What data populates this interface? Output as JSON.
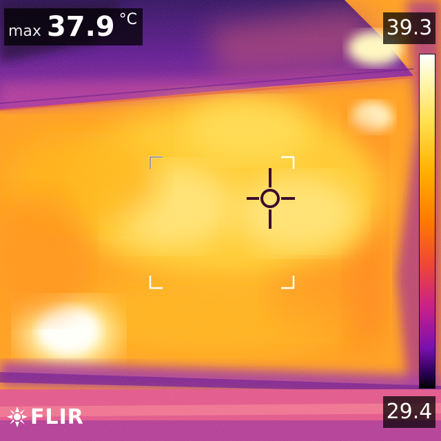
{
  "readout": {
    "max_label": "max",
    "max_value": "37.9",
    "unit": "°C"
  },
  "scale": {
    "max": "39.3",
    "min": "29.4"
  },
  "brand": {
    "logo_text": "FLIR"
  },
  "icons": {
    "crosshair": "crosshair-icon",
    "measurement_box": "measurement-box-icon",
    "logo": "flir-logo-icon"
  },
  "palette": {
    "hot": "#ffffff",
    "warm": "#ffd23c",
    "mid": "#ff8c00",
    "cool": "#c8208a",
    "cold": "#1a0040"
  }
}
